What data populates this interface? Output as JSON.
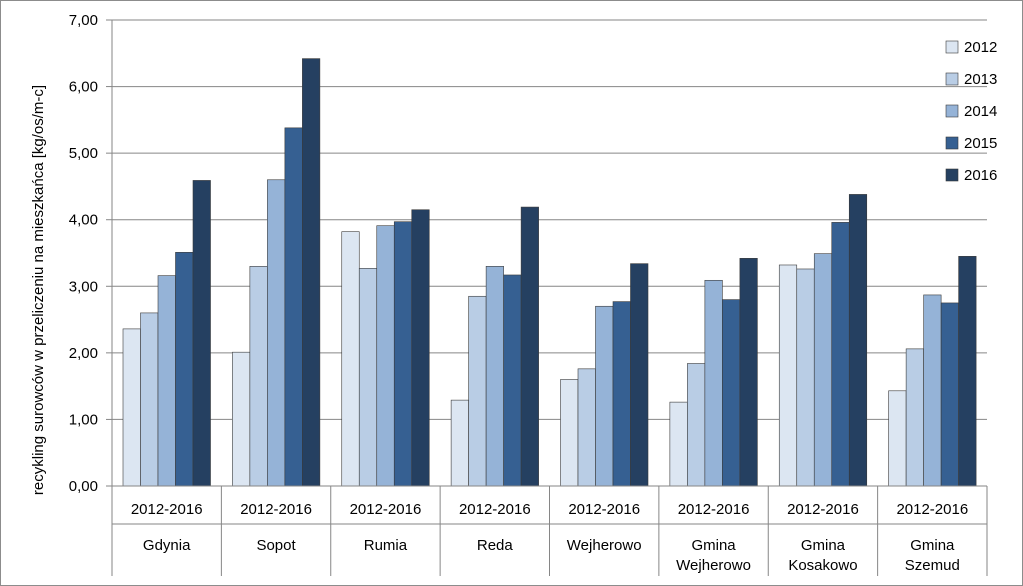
{
  "chart_data": {
    "type": "bar",
    "ylabel": "recykling surowców w przeliczeniu na mieszkańca [kg/os/m-c]",
    "ylim": [
      0,
      7
    ],
    "yticks": [
      "0,00",
      "1,00",
      "2,00",
      "3,00",
      "4,00",
      "5,00",
      "6,00",
      "7,00"
    ],
    "grid": true,
    "legend_position": "top-right",
    "categories": [
      {
        "period": "2012-2016",
        "name": [
          "Gdynia"
        ]
      },
      {
        "period": "2012-2016",
        "name": [
          "Sopot"
        ]
      },
      {
        "period": "2012-2016",
        "name": [
          "Rumia"
        ]
      },
      {
        "period": "2012-2016",
        "name": [
          "Reda"
        ]
      },
      {
        "period": "2012-2016",
        "name": [
          "Wejherowo"
        ]
      },
      {
        "period": "2012-2016",
        "name": [
          "Gmina",
          "Wejherowo"
        ]
      },
      {
        "period": "2012-2016",
        "name": [
          "Gmina",
          "Kosakowo"
        ]
      },
      {
        "period": "2012-2016",
        "name": [
          "Gmina",
          "Szemud"
        ]
      }
    ],
    "series": [
      {
        "name": "2012",
        "color": "#dce6f2",
        "values": [
          2.36,
          2.01,
          3.82,
          1.29,
          1.6,
          1.26,
          3.32,
          1.43
        ]
      },
      {
        "name": "2013",
        "color": "#b9cde5",
        "values": [
          2.6,
          3.3,
          3.27,
          2.85,
          1.76,
          1.84,
          3.26,
          2.06
        ]
      },
      {
        "name": "2014",
        "color": "#95b3d7",
        "values": [
          3.16,
          4.6,
          3.91,
          3.3,
          2.7,
          3.09,
          3.49,
          2.87
        ]
      },
      {
        "name": "2015",
        "color": "#366092",
        "values": [
          3.51,
          5.38,
          3.97,
          3.17,
          2.77,
          2.8,
          3.96,
          2.75
        ]
      },
      {
        "name": "2016",
        "color": "#254061",
        "values": [
          4.59,
          6.42,
          4.15,
          4.19,
          3.34,
          3.42,
          4.38,
          3.45
        ]
      }
    ]
  }
}
